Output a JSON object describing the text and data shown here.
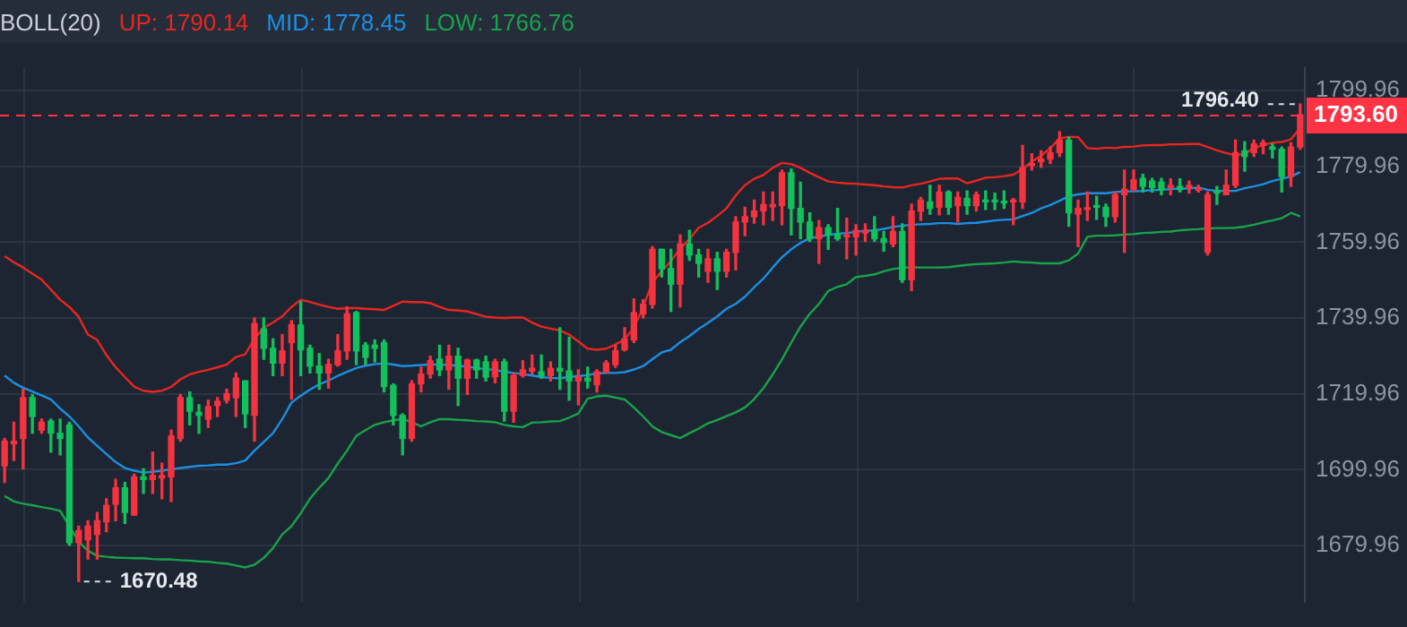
{
  "chart_data": {
    "type": "candlestick",
    "title": "BOLL(20)",
    "legend": "top",
    "grid": true,
    "categories": [
      null,
      null,
      null,
      null,
      null,
      null,
      null,
      null,
      null,
      null,
      null,
      null,
      null,
      null,
      null,
      null,
      null,
      null,
      null,
      null,
      null,
      null,
      null,
      null,
      null,
      null,
      null,
      null,
      null,
      null,
      null,
      null,
      null,
      null,
      null,
      null,
      null,
      null,
      null,
      null,
      null,
      null,
      null,
      null,
      null,
      null,
      null,
      null,
      null,
      null,
      null,
      null,
      null,
      null,
      null,
      null,
      null,
      null,
      null,
      null,
      null,
      null,
      null,
      null,
      null,
      null,
      null,
      null,
      null,
      null,
      null,
      null,
      null,
      null,
      null,
      null,
      null,
      null,
      null,
      null,
      null,
      null,
      null,
      null,
      null,
      null,
      null,
      null,
      null,
      null,
      null,
      null,
      null,
      null,
      null,
      null,
      null,
      null,
      null,
      null,
      null,
      null,
      null,
      null,
      null,
      null,
      null,
      null,
      null,
      null,
      null,
      null,
      null,
      null,
      null,
      null,
      null,
      null,
      null,
      null,
      null,
      null,
      null,
      null,
      null,
      null,
      null,
      null,
      null,
      null,
      null,
      null,
      null,
      null,
      null,
      null,
      null,
      null,
      null,
      null,
      null
    ],
    "ylim": [
      1665,
      1806
    ],
    "yticks": [
      1679.96,
      1699.96,
      1719.96,
      1739.96,
      1759.96,
      1779.96,
      1799.96
    ],
    "ohlc": [
      [
        1701.0,
        1708.2,
        1696.6,
        1707.5
      ],
      [
        1706.8,
        1712.5,
        1702.4,
        1707.5
      ],
      [
        1708.2,
        1721.2,
        1700.2,
        1719.0
      ],
      [
        1719.0,
        1719.8,
        1709.6,
        1714.0
      ],
      [
        1710.4,
        1713.3,
        1709.6,
        1712.5
      ],
      [
        1712.8,
        1713.3,
        1704.6,
        1709.6
      ],
      [
        1709.6,
        1713.3,
        1703.9,
        1708.2
      ],
      [
        1711.8,
        1712.5,
        1680.0,
        1680.7
      ],
      [
        1680.7,
        1685.1,
        1670.48,
        1683.9
      ],
      [
        1681.5,
        1686.5,
        1676.4,
        1685.1
      ],
      [
        1682.9,
        1688.7,
        1676.4,
        1686.5
      ],
      [
        1686.2,
        1692.3,
        1683.6,
        1690.6
      ],
      [
        1690.9,
        1697.4,
        1686.5,
        1695.2
      ],
      [
        1695.2,
        1696.6,
        1685.8,
        1688.7
      ],
      [
        1688.0,
        1698.8,
        1688.0,
        1698.1
      ],
      [
        1698.1,
        1700.2,
        1693.7,
        1697.4
      ],
      [
        1697.4,
        1704.6,
        1693.7,
        1698.4
      ],
      [
        1697.8,
        1701.7,
        1692.3,
        1698.4
      ],
      [
        1698.1,
        1710.4,
        1691.6,
        1708.9
      ],
      [
        1708.2,
        1719.8,
        1707.5,
        1719.0
      ],
      [
        1719.0,
        1720.5,
        1711.8,
        1715.4
      ],
      [
        1715.1,
        1717.1,
        1709.6,
        1714.3
      ],
      [
        1713.3,
        1718.3,
        1711.1,
        1716.6
      ],
      [
        1716.9,
        1719.0,
        1714.0,
        1718.0
      ],
      [
        1718.3,
        1721.2,
        1717.6,
        1720.0
      ],
      [
        1719.0,
        1725.5,
        1714.0,
        1724.1
      ],
      [
        1723.4,
        1723.4,
        1711.1,
        1714.7
      ],
      [
        1714.3,
        1740.0,
        1707.5,
        1738.5
      ],
      [
        1737.1,
        1740.0,
        1729.1,
        1732.0
      ],
      [
        1732.0,
        1734.5,
        1724.8,
        1728.1
      ],
      [
        1728.1,
        1735.6,
        1724.8,
        1731.3
      ],
      [
        1733.5,
        1739.3,
        1718.6,
        1738.2
      ],
      [
        1738.1,
        1744.3,
        1724.8,
        1731.6
      ],
      [
        1732.0,
        1732.8,
        1725.5,
        1727.3
      ],
      [
        1727.3,
        1730.6,
        1721.2,
        1725.5
      ],
      [
        1725.5,
        1729.1,
        1721.5,
        1727.7
      ],
      [
        1727.7,
        1735.6,
        1727.3,
        1731.3
      ],
      [
        1731.3,
        1742.9,
        1729.1,
        1741.1
      ],
      [
        1741.4,
        1741.7,
        1727.7,
        1731.3
      ],
      [
        1732.8,
        1733.5,
        1727.7,
        1729.6
      ],
      [
        1732.8,
        1734.2,
        1728.4,
        1732.0
      ],
      [
        1733.5,
        1734.2,
        1720.5,
        1721.9
      ],
      [
        1722.2,
        1722.6,
        1711.8,
        1714.3
      ],
      [
        1714.3,
        1714.7,
        1703.9,
        1708.2
      ],
      [
        1708.2,
        1723.4,
        1707.5,
        1722.6
      ],
      [
        1722.6,
        1727.0,
        1720.5,
        1725.2
      ],
      [
        1725.2,
        1729.9,
        1724.1,
        1728.7
      ],
      [
        1729.1,
        1732.8,
        1724.8,
        1726.3
      ],
      [
        1726.3,
        1732.8,
        1721.2,
        1729.9
      ],
      [
        1729.9,
        1732.0,
        1716.9,
        1724.1
      ],
      [
        1724.1,
        1729.1,
        1719.8,
        1728.9
      ],
      [
        1728.9,
        1729.1,
        1724.1,
        1726.3
      ],
      [
        1728.4,
        1729.9,
        1723.4,
        1724.4
      ],
      [
        1724.5,
        1729.1,
        1722.9,
        1728.4
      ],
      [
        1728.4,
        1729.1,
        1712.8,
        1715.4
      ],
      [
        1715.4,
        1725.5,
        1712.5,
        1724.8
      ],
      [
        1724.8,
        1728.7,
        1724.4,
        1726.3
      ],
      [
        1726.0,
        1730.2,
        1725.2,
        1726.7
      ],
      [
        1725.8,
        1730.2,
        1724.1,
        1724.8
      ],
      [
        1724.8,
        1728.4,
        1723.4,
        1726.7
      ],
      [
        1726.7,
        1737.4,
        1721.2,
        1726.0
      ],
      [
        1726.0,
        1734.9,
        1718.3,
        1723.4
      ],
      [
        1723.4,
        1726.3,
        1717.1,
        1724.4
      ],
      [
        1724.1,
        1727.0,
        1721.5,
        1723.4
      ],
      [
        1722.4,
        1726.3,
        1720.5,
        1725.8
      ],
      [
        1725.8,
        1728.7,
        1725.5,
        1728.1
      ],
      [
        1727.7,
        1732.8,
        1727.0,
        1731.3
      ],
      [
        1731.6,
        1737.4,
        1731.3,
        1734.5
      ],
      [
        1734.2,
        1745.0,
        1733.5,
        1741.4
      ],
      [
        1741.1,
        1744.8,
        1740.0,
        1743.6
      ],
      [
        1743.6,
        1758.8,
        1742.6,
        1758.1
      ],
      [
        1758.1,
        1758.1,
        1750.8,
        1753.0
      ],
      [
        1753.0,
        1758.1,
        1741.7,
        1748.9
      ],
      [
        1748.9,
        1761.9,
        1742.9,
        1759.5
      ],
      [
        1759.5,
        1763.1,
        1755.2,
        1756.6
      ],
      [
        1756.6,
        1758.1,
        1750.8,
        1754.4
      ],
      [
        1752.3,
        1758.1,
        1749.4,
        1755.6
      ],
      [
        1755.6,
        1757.3,
        1747.5,
        1752.3
      ],
      [
        1752.3,
        1758.1,
        1750.8,
        1757.3
      ],
      [
        1757.3,
        1766.7,
        1752.7,
        1765.3
      ],
      [
        1765.3,
        1769.2,
        1761.7,
        1766.7
      ],
      [
        1766.7,
        1771.1,
        1765.0,
        1768.2
      ],
      [
        1768.2,
        1773.2,
        1764.6,
        1769.9
      ],
      [
        1769.3,
        1773.2,
        1765.7,
        1769.9
      ],
      [
        1769.6,
        1779.0,
        1764.6,
        1778.3
      ],
      [
        1778.3,
        1779.3,
        1761.9,
        1768.9
      ],
      [
        1768.9,
        1775.8,
        1760.9,
        1765.3
      ],
      [
        1765.3,
        1767.7,
        1760.2,
        1760.9
      ],
      [
        1760.9,
        1765.7,
        1754.4,
        1763.8
      ],
      [
        1763.8,
        1764.6,
        1758.1,
        1761.9
      ],
      [
        1761.9,
        1768.9,
        1760.5,
        1760.9
      ],
      [
        1761.4,
        1766.3,
        1755.6,
        1761.7
      ],
      [
        1761.4,
        1764.6,
        1756.6,
        1763.1
      ],
      [
        1762.4,
        1764.8,
        1760.2,
        1763.1
      ],
      [
        1763.1,
        1766.7,
        1760.2,
        1760.9
      ],
      [
        1760.9,
        1762.8,
        1757.6,
        1759.9
      ],
      [
        1759.5,
        1766.7,
        1758.8,
        1762.8
      ],
      [
        1762.8,
        1764.8,
        1749.4,
        1750.1
      ],
      [
        1750.1,
        1770.0,
        1747.2,
        1768.2
      ],
      [
        1768.2,
        1771.8,
        1765.7,
        1771.1
      ],
      [
        1770.6,
        1775.0,
        1767.4,
        1768.9
      ],
      [
        1769.2,
        1775.0,
        1767.2,
        1773.2
      ],
      [
        1773.2,
        1773.5,
        1767.4,
        1769.2
      ],
      [
        1769.6,
        1773.2,
        1765.3,
        1771.8
      ],
      [
        1771.5,
        1773.5,
        1767.4,
        1769.6
      ],
      [
        1769.6,
        1773.2,
        1768.2,
        1772.5
      ],
      [
        1771.1,
        1773.5,
        1768.6,
        1770.6
      ],
      [
        1770.9,
        1772.9,
        1768.6,
        1770.6
      ],
      [
        1770.6,
        1773.5,
        1768.9,
        1770.3
      ],
      [
        1770.6,
        1771.5,
        1764.6,
        1770.9
      ],
      [
        1770.6,
        1785.5,
        1768.9,
        1779.7
      ],
      [
        1780.2,
        1783.3,
        1779.0,
        1780.7
      ],
      [
        1781.2,
        1784.1,
        1779.7,
        1781.9
      ],
      [
        1781.9,
        1785.1,
        1780.7,
        1783.6
      ],
      [
        1783.6,
        1789.1,
        1782.6,
        1786.9
      ],
      [
        1786.9,
        1787.7,
        1764.2,
        1767.7
      ],
      [
        1767.4,
        1771.1,
        1758.8,
        1768.9
      ],
      [
        1768.6,
        1773.2,
        1765.7,
        1768.9
      ],
      [
        1769.6,
        1772.1,
        1766.0,
        1769.2
      ],
      [
        1769.2,
        1770.0,
        1764.2,
        1766.7
      ],
      [
        1766.7,
        1773.2,
        1765.3,
        1772.5
      ],
      [
        1772.5,
        1779.0,
        1757.3,
        1773.9
      ],
      [
        1773.9,
        1779.0,
        1773.5,
        1776.4
      ],
      [
        1776.8,
        1777.9,
        1773.2,
        1774.7
      ],
      [
        1776.1,
        1776.8,
        1773.2,
        1774.4
      ],
      [
        1775.8,
        1776.8,
        1772.5,
        1773.9
      ],
      [
        1774.4,
        1776.7,
        1772.5,
        1775.0
      ],
      [
        1774.7,
        1776.7,
        1773.2,
        1773.9
      ],
      [
        1774.4,
        1776.1,
        1772.9,
        1775.0
      ],
      [
        1773.7,
        1775.0,
        1773.2,
        1774.2
      ],
      [
        1757.3,
        1773.2,
        1756.6,
        1772.5
      ],
      [
        1773.5,
        1774.7,
        1770.0,
        1772.9
      ],
      [
        1772.5,
        1779.0,
        1772.5,
        1775.0
      ],
      [
        1775.0,
        1786.9,
        1774.4,
        1783.6
      ],
      [
        1784.1,
        1786.5,
        1778.7,
        1782.6
      ],
      [
        1783.6,
        1786.9,
        1782.6,
        1785.9
      ],
      [
        1785.5,
        1786.9,
        1783.3,
        1786.2
      ],
      [
        1785.1,
        1785.9,
        1782.2,
        1784.5
      ],
      [
        1784.5,
        1785.1,
        1773.2,
        1777.3
      ],
      [
        1777.3,
        1786.2,
        1774.7,
        1785.1
      ],
      [
        1785.1,
        1796.4,
        1784.5,
        1793.6
      ]
    ],
    "colors": [
      "#f5333f",
      "#f5333f",
      "#f5333f",
      "#12c15c",
      "#f5333f",
      "#12c15c",
      "#12c15c",
      "#12c15c",
      "#f5333f",
      "#f5333f",
      "#f5333f",
      "#f5333f",
      "#f5333f",
      "#12c15c",
      "#f5333f",
      "#12c15c",
      "#f5333f",
      "#f5333f",
      "#f5333f",
      "#f5333f",
      "#12c15c",
      "#12c15c",
      "#f5333f",
      "#f5333f",
      "#f5333f",
      "#f5333f",
      "#12c15c",
      "#f5333f",
      "#12c15c",
      "#12c15c",
      "#f5333f",
      "#f5333f",
      "#12c15c",
      "#12c15c",
      "#12c15c",
      "#f5333f",
      "#f5333f",
      "#f5333f",
      "#12c15c",
      "#12c15c",
      "#12c15c",
      "#12c15c",
      "#12c15c",
      "#12c15c",
      "#f5333f",
      "#f5333f",
      "#f5333f",
      "#12c15c",
      "#f5333f",
      "#12c15c",
      "#f5333f",
      "#12c15c",
      "#12c15c",
      "#f5333f",
      "#12c15c",
      "#f5333f",
      "#f5333f",
      "#f5333f",
      "#12c15c",
      "#f5333f",
      "#12c15c",
      "#12c15c",
      "#f5333f",
      "#12c15c",
      "#f5333f",
      "#f5333f",
      "#f5333f",
      "#f5333f",
      "#f5333f",
      "#f5333f",
      "#f5333f",
      "#12c15c",
      "#12c15c",
      "#f5333f",
      "#12c15c",
      "#12c15c",
      "#f5333f",
      "#12c15c",
      "#f5333f",
      "#f5333f",
      "#f5333f",
      "#f5333f",
      "#f5333f",
      "#f5333f",
      "#f5333f",
      "#12c15c",
      "#12c15c",
      "#12c15c",
      "#f5333f",
      "#12c15c",
      "#12c15c",
      "#f5333f",
      "#f5333f",
      "#f5333f",
      "#12c15c",
      "#12c15c",
      "#f5333f",
      "#12c15c",
      "#f5333f",
      "#f5333f",
      "#12c15c",
      "#f5333f",
      "#12c15c",
      "#f5333f",
      "#12c15c",
      "#f5333f",
      "#12c15c",
      "#12c15c",
      "#12c15c",
      "#f5333f",
      "#f5333f",
      "#f5333f",
      "#f5333f",
      "#f5333f",
      "#f5333f",
      "#12c15c",
      "#f5333f",
      "#f5333f",
      "#12c15c",
      "#12c15c",
      "#f5333f",
      "#f5333f",
      "#f5333f",
      "#12c15c",
      "#12c15c",
      "#12c15c",
      "#f5333f",
      "#12c15c",
      "#f5333f",
      "#f5333f",
      "#f5333f",
      "#12c15c",
      "#f5333f",
      "#f5333f",
      "#12c15c",
      "#f5333f",
      "#f5333f",
      "#12c15c",
      "#12c15c",
      "#f5333f",
      "#f5333f"
    ],
    "series": [
      {
        "name": "UP: 1790.14",
        "type": "line",
        "color": "#e8261f",
        "values": [
          1756.3,
          1754.7,
          1753.3,
          1751.7,
          1750.1,
          1747.5,
          1744.8,
          1742.9,
          1740.3,
          1735.6,
          1734.2,
          1730.2,
          1727.0,
          1724.4,
          1721.9,
          1720.8,
          1720.5,
          1720.8,
          1721.8,
          1723.8,
          1725.1,
          1725.8,
          1726.3,
          1727.0,
          1727.7,
          1729.7,
          1730.4,
          1734.5,
          1737.4,
          1738.8,
          1740.4,
          1742.9,
          1744.8,
          1744.2,
          1743.5,
          1742.9,
          1742.4,
          1742.6,
          1742.6,
          1742.4,
          1742.3,
          1742.1,
          1743.2,
          1744.3,
          1744.2,
          1744.2,
          1743.9,
          1742.9,
          1742.1,
          1742.0,
          1741.7,
          1741.0,
          1740.3,
          1740.1,
          1740.0,
          1740.1,
          1740.1,
          1738.8,
          1737.7,
          1737.2,
          1736.7,
          1735.6,
          1733.8,
          1731.9,
          1731.6,
          1731.9,
          1733.0,
          1734.3,
          1737.4,
          1742.9,
          1749.4,
          1752.3,
          1755.0,
          1758.3,
          1760.8,
          1763.8,
          1765.1,
          1766.9,
          1768.9,
          1772.3,
          1775.0,
          1776.7,
          1777.7,
          1779.6,
          1780.9,
          1780.6,
          1779.6,
          1778.3,
          1777.1,
          1776.0,
          1775.7,
          1775.5,
          1775.4,
          1775.2,
          1775.0,
          1774.7,
          1774.5,
          1774.4,
          1775.0,
          1775.4,
          1776.0,
          1776.7,
          1776.8,
          1776.8,
          1775.5,
          1776.2,
          1777.0,
          1777.1,
          1777.4,
          1777.8,
          1779.3,
          1781.2,
          1782.8,
          1784.8,
          1787.4,
          1787.7,
          1787.7,
          1784.8,
          1784.6,
          1784.9,
          1784.8,
          1785.1,
          1785.2,
          1785.5,
          1785.6,
          1785.6,
          1785.8,
          1785.8,
          1785.9,
          1785.9,
          1785.1,
          1784.2,
          1783.5,
          1782.9,
          1783.3,
          1784.8,
          1785.6,
          1786.2,
          1786.4,
          1787.1,
          1790.14
        ]
      },
      {
        "name": "MID: 1778.45",
        "type": "line",
        "color": "#1a8fe3",
        "values": [
          1724.8,
          1722.9,
          1721.6,
          1720.6,
          1719.6,
          1718.5,
          1716.1,
          1714.0,
          1711.4,
          1708.5,
          1706.3,
          1704.1,
          1702.0,
          1700.4,
          1699.7,
          1699.2,
          1699.4,
          1699.7,
          1700.1,
          1700.4,
          1700.7,
          1701.0,
          1701.1,
          1701.3,
          1701.3,
          1701.7,
          1702.4,
          1705.0,
          1707.3,
          1709.6,
          1713.3,
          1717.7,
          1719.5,
          1721.1,
          1722.5,
          1723.5,
          1724.7,
          1725.8,
          1726.8,
          1727.4,
          1727.8,
          1728.1,
          1727.7,
          1727.3,
          1727.4,
          1727.6,
          1727.7,
          1727.7,
          1727.6,
          1727.4,
          1727.1,
          1726.8,
          1726.5,
          1726.3,
          1725.8,
          1725.5,
          1725.2,
          1724.8,
          1724.4,
          1724.2,
          1724.1,
          1724.4,
          1724.7,
          1724.9,
          1725.4,
          1725.5,
          1725.5,
          1725.7,
          1726.4,
          1727.3,
          1729.1,
          1730.9,
          1731.6,
          1733.6,
          1735.2,
          1737.1,
          1738.7,
          1740.4,
          1742.4,
          1743.7,
          1745.6,
          1748.1,
          1750.4,
          1753.3,
          1756.0,
          1758.1,
          1759.8,
          1761.0,
          1761.5,
          1761.9,
          1762.2,
          1762.4,
          1762.7,
          1763.0,
          1763.1,
          1763.5,
          1764.0,
          1764.3,
          1764.6,
          1764.7,
          1764.8,
          1765.0,
          1765.0,
          1764.8,
          1765.0,
          1765.1,
          1765.4,
          1765.7,
          1765.9,
          1766.0,
          1766.9,
          1767.7,
          1768.9,
          1769.8,
          1770.9,
          1772.1,
          1772.6,
          1772.9,
          1772.9,
          1772.9,
          1773.2,
          1773.4,
          1773.4,
          1773.5,
          1773.7,
          1773.8,
          1774.0,
          1774.1,
          1774.2,
          1774.4,
          1773.8,
          1773.5,
          1773.5,
          1773.5,
          1774.2,
          1774.7,
          1775.3,
          1776.1,
          1776.7,
          1777.3,
          1778.45
        ]
      },
      {
        "name": "LOW: 1766.76",
        "type": "line",
        "color": "#17a34a",
        "values": [
          1693.0,
          1691.6,
          1691.0,
          1690.6,
          1690.1,
          1689.7,
          1689.1,
          1685.1,
          1681.0,
          1678.6,
          1677.3,
          1677.0,
          1676.8,
          1676.7,
          1676.6,
          1676.6,
          1676.4,
          1676.3,
          1676.3,
          1676.1,
          1676.0,
          1675.8,
          1675.7,
          1675.4,
          1675.2,
          1674.7,
          1674.2,
          1674.9,
          1676.7,
          1679.3,
          1682.9,
          1685.1,
          1688.5,
          1692.3,
          1695.2,
          1697.8,
          1701.6,
          1705.0,
          1708.9,
          1710.4,
          1711.8,
          1712.5,
          1713.0,
          1713.3,
          1712.5,
          1711.4,
          1712.5,
          1713.3,
          1713.3,
          1713.1,
          1713.0,
          1712.8,
          1712.7,
          1712.5,
          1711.8,
          1711.4,
          1711.2,
          1712.4,
          1712.5,
          1712.7,
          1712.8,
          1713.7,
          1714.8,
          1718.7,
          1719.3,
          1719.5,
          1719.0,
          1718.5,
          1716.4,
          1714.0,
          1711.4,
          1709.9,
          1709.1,
          1708.3,
          1709.6,
          1710.8,
          1712.2,
          1713.1,
          1714.1,
          1715.1,
          1716.4,
          1718.6,
          1721.5,
          1725.1,
          1729.1,
          1733.5,
          1737.7,
          1741.1,
          1743.7,
          1747.1,
          1748.2,
          1748.9,
          1750.8,
          1751.1,
          1751.5,
          1752.3,
          1752.9,
          1753.3,
          1753.3,
          1753.3,
          1753.3,
          1753.3,
          1753.4,
          1753.7,
          1754.0,
          1754.2,
          1754.3,
          1754.4,
          1754.6,
          1754.9,
          1754.7,
          1754.6,
          1754.4,
          1754.4,
          1754.4,
          1755.2,
          1757.0,
          1761.4,
          1761.7,
          1761.7,
          1761.8,
          1762.0,
          1762.1,
          1762.4,
          1762.5,
          1762.7,
          1762.8,
          1763.1,
          1763.3,
          1763.4,
          1763.6,
          1763.7,
          1763.7,
          1763.8,
          1764.1,
          1764.6,
          1765.2,
          1765.7,
          1766.3,
          1767.7,
          1766.76
        ]
      }
    ],
    "ref_lines": [
      {
        "axis": "y",
        "value": 1793.6,
        "label": "1793.60",
        "color": "#ff3344",
        "line_style": "dashed"
      }
    ],
    "annotations": [
      "1796.40",
      "1670.48"
    ]
  }
}
